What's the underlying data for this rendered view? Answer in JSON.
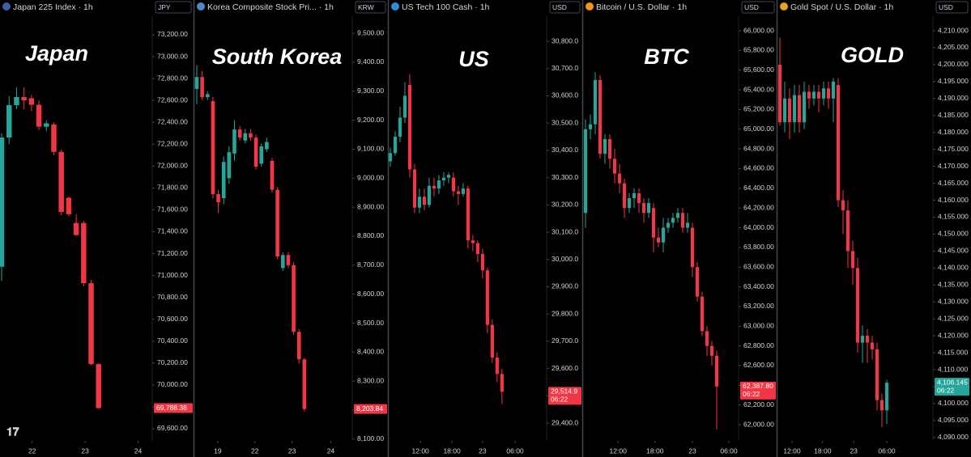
{
  "chart_data": [
    {
      "type": "candlestick",
      "title": "Japan 225 Index · 1h",
      "currency": "JPY",
      "label": "Japan",
      "up_color": "#26a69a",
      "down_color": "#f23645",
      "x": [
        0,
        1,
        2,
        3,
        4,
        5,
        6,
        7,
        8,
        9,
        10,
        11,
        12,
        13
      ],
      "open": [
        71080,
        72261,
        72557,
        72631,
        72620,
        72560,
        72360,
        72380,
        72130,
        71710,
        71480,
        71480,
        70930,
        70190
      ],
      "high": [
        72300,
        72640,
        72720,
        72720,
        72650,
        72600,
        72420,
        72400,
        72150,
        71720,
        71560,
        71500,
        70960,
        70200
      ],
      "low": [
        70950,
        72200,
        72520,
        72520,
        72500,
        72330,
        72320,
        72100,
        71550,
        71540,
        71360,
        70900,
        70180,
        69780
      ],
      "close": [
        72261,
        72557,
        72631,
        72600,
        72560,
        72360,
        72390,
        72130,
        71580,
        71560,
        71370,
        70930,
        70190,
        69788.38
      ],
      "xlim": [
        -0.22,
        20.2
      ],
      "ylim": [
        69489,
        73370
      ],
      "xticks": [
        {
          "value": 4.1,
          "label": "22"
        },
        {
          "value": 11.2,
          "label": "23"
        },
        {
          "value": 18.3,
          "label": "24"
        }
      ],
      "yticks": [
        {
          "value": 69600,
          "label": "69,600.00"
        },
        {
          "value": 69800,
          "label": "69,800.00"
        },
        {
          "value": 70000,
          "label": "70,000.00"
        },
        {
          "value": 70200,
          "label": "70,200.00"
        },
        {
          "value": 70400,
          "label": "70,400.00"
        },
        {
          "value": 70600,
          "label": "70,600.00"
        },
        {
          "value": 70800,
          "label": "70,800.00"
        },
        {
          "value": 71000,
          "label": "71,000.00"
        },
        {
          "value": 71200,
          "label": "71,200.00"
        },
        {
          "value": 71400,
          "label": "71,400.00"
        },
        {
          "value": 71600,
          "label": "71,600.00"
        },
        {
          "value": 71800,
          "label": "71,800.00"
        },
        {
          "value": 72000,
          "label": "72,000.00"
        },
        {
          "value": 72200,
          "label": "72,200.00"
        },
        {
          "value": 72400,
          "label": "72,400.00"
        },
        {
          "value": 72600,
          "label": "72,600.00"
        },
        {
          "value": 72800,
          "label": "72,800.00"
        },
        {
          "value": 73000,
          "label": "73,000.00"
        },
        {
          "value": 73200,
          "label": "73,200.00"
        }
      ],
      "last_price": {
        "value": 69788.38,
        "label": "69,788.38"
      }
    },
    {
      "type": "candlestick",
      "title": "Korea Composite Stock Pri... · 1h",
      "currency": "KRW",
      "label": "South Korea",
      "up_color": "#26a69a",
      "down_color": "#f23645",
      "x": [
        0,
        1,
        2,
        3,
        4,
        5,
        6,
        7,
        8,
        9,
        10,
        11,
        12,
        13,
        14,
        15,
        16,
        17,
        18,
        19,
        20
      ],
      "open": [
        9308,
        9349,
        9280,
        9266,
        8945,
        8931,
        9000,
        9085,
        9168,
        9130,
        9155,
        9140,
        9050,
        9100,
        9060,
        8960,
        8690,
        8735,
        8700,
        8470,
        8375
      ],
      "high": [
        9390,
        9370,
        9300,
        9280,
        8960,
        9075,
        9110,
        9200,
        9180,
        9170,
        9170,
        9150,
        9120,
        9140,
        9070,
        8970,
        8745,
        8745,
        8710,
        8480,
        8380
      ],
      "low": [
        9255,
        9270,
        9270,
        8930,
        8880,
        8910,
        8980,
        9060,
        9130,
        9120,
        9130,
        9030,
        9040,
        9090,
        8950,
        8720,
        8680,
        8690,
        8460,
        8360,
        8195
      ],
      "close": [
        9349,
        9280,
        9290,
        8945,
        8917,
        9056,
        9090,
        9168,
        9140,
        9155,
        9140,
        9040,
        9110,
        9125,
        8960,
        8730,
        8735,
        8700,
        8470,
        8375,
        8203.84
      ],
      "xlim": [
        -0.45,
        28.9
      ],
      "ylim": [
        8094,
        9559
      ],
      "xticks": [
        {
          "value": 3.9,
          "label": "19"
        },
        {
          "value": 10.8,
          "label": "22"
        },
        {
          "value": 17.7,
          "label": "23"
        },
        {
          "value": 24.9,
          "label": "24"
        }
      ],
      "yticks": [
        {
          "value": 8100,
          "label": "8,100.00"
        },
        {
          "value": 8200,
          "label": "8,200.00"
        },
        {
          "value": 8300,
          "label": "8,300.00"
        },
        {
          "value": 8400,
          "label": "8,400.00"
        },
        {
          "value": 8500,
          "label": "8,500.00"
        },
        {
          "value": 8600,
          "label": "8,600.00"
        },
        {
          "value": 8700,
          "label": "8,700.00"
        },
        {
          "value": 8800,
          "label": "8,800.00"
        },
        {
          "value": 8900,
          "label": "8,900.00"
        },
        {
          "value": 9000,
          "label": "9,000.00"
        },
        {
          "value": 9100,
          "label": "9,100.00"
        },
        {
          "value": 9200,
          "label": "9,200.00"
        },
        {
          "value": 9300,
          "label": "9,300.00"
        },
        {
          "value": 9400,
          "label": "9,400.00"
        },
        {
          "value": 9500,
          "label": "9,500.00"
        }
      ],
      "last_price": {
        "value": 8203.84,
        "label": "8,203.84"
      }
    },
    {
      "type": "candlestick",
      "title": "US Tech 100 Cash · 1h",
      "currency": "USD",
      "label": "US",
      "up_color": "#26a69a",
      "down_color": "#f23645",
      "x": [
        0,
        1,
        2,
        3,
        4,
        5,
        6,
        7,
        8,
        9,
        10,
        11,
        12,
        13,
        14,
        15,
        16,
        17,
        18,
        19,
        20,
        21,
        22,
        23
      ],
      "open": [
        30360,
        30390,
        30450,
        30520,
        30640,
        30330,
        30190,
        30230,
        30200,
        30270,
        30260,
        30290,
        30300,
        30300,
        30250,
        30240,
        30260,
        30070,
        30060,
        30020,
        29960,
        29760,
        29640,
        29580
      ],
      "high": [
        30410,
        30470,
        30560,
        30650,
        30680,
        30350,
        30260,
        30260,
        30300,
        30300,
        30310,
        30320,
        30320,
        30320,
        30270,
        30280,
        30270,
        30090,
        30070,
        30040,
        29970,
        29780,
        29660,
        29600
      ],
      "low": [
        30340,
        30380,
        30430,
        30500,
        30300,
        30170,
        30170,
        30180,
        30190,
        30230,
        30240,
        30270,
        30280,
        30230,
        30200,
        30230,
        30040,
        30030,
        29990,
        29930,
        29730,
        29620,
        29550,
        29470
      ],
      "close": [
        30390,
        30450,
        30520,
        30600,
        30330,
        30190,
        30230,
        30200,
        30270,
        30260,
        30290,
        30300,
        30310,
        30250,
        30240,
        30260,
        30070,
        30060,
        30020,
        29960,
        29760,
        29640,
        29580,
        29514.9
      ],
      "xlim": [
        -0.33,
        32.2
      ],
      "ylim": [
        29335,
        30892
      ],
      "xticks": [
        {
          "value": 6.2,
          "label": "12:00"
        },
        {
          "value": 12.7,
          "label": "18:00"
        },
        {
          "value": 19,
          "label": "23"
        },
        {
          "value": 25.7,
          "label": "06:00"
        }
      ],
      "yticks": [
        {
          "value": 29400,
          "label": "29,400.0"
        },
        {
          "value": 29500,
          "label": "29,500.0"
        },
        {
          "value": 29600,
          "label": "29,600.0"
        },
        {
          "value": 29700,
          "label": "29,700.0"
        },
        {
          "value": 29800,
          "label": "29,800.0"
        },
        {
          "value": 29900,
          "label": "29,900.0"
        },
        {
          "value": 30000,
          "label": "30,000.0"
        },
        {
          "value": 30100,
          "label": "30,100.0"
        },
        {
          "value": 30200,
          "label": "30,200.0"
        },
        {
          "value": 30300,
          "label": "30,300.0"
        },
        {
          "value": 30400,
          "label": "30,400.0"
        },
        {
          "value": 30500,
          "label": "30,500.0"
        },
        {
          "value": 30600,
          "label": "30,600.0"
        },
        {
          "value": 30700,
          "label": "30,700.0"
        },
        {
          "value": 30800,
          "label": "30,800.0"
        }
      ],
      "last_price": {
        "value": 29514.9,
        "label": "29,514.9"
      },
      "countdown": "06:22"
    },
    {
      "type": "candlestick",
      "title": "Bitcoin / U.S. Dollar · 1h",
      "currency": "USD",
      "label": "BTC",
      "up_color": "#26a69a",
      "down_color": "#f23645",
      "x": [
        0,
        1,
        2,
        3,
        4,
        5,
        6,
        7,
        8,
        9,
        10,
        11,
        12,
        13,
        14,
        15,
        16,
        17,
        18,
        19,
        20,
        21,
        22,
        23,
        24,
        25,
        26,
        27
      ],
      "open": [
        64150,
        65000,
        65050,
        65500,
        64750,
        64900,
        64700,
        64550,
        64450,
        64200,
        64300,
        64350,
        64250,
        64150,
        64200,
        63900,
        63850,
        64000,
        64050,
        64100,
        64150,
        64000,
        64000,
        63600,
        63300,
        62950,
        62800,
        62700
      ],
      "high": [
        65100,
        65150,
        65580,
        65550,
        64950,
        64950,
        64800,
        64650,
        64500,
        64350,
        64400,
        64400,
        64300,
        64300,
        64250,
        64000,
        64100,
        64100,
        64150,
        64200,
        64200,
        64150,
        64050,
        63650,
        63350,
        63000,
        62850,
        62750
      ],
      "low": [
        64000,
        64900,
        64950,
        64700,
        64650,
        64600,
        64450,
        64350,
        64100,
        64150,
        64200,
        64150,
        64050,
        64100,
        63750,
        63800,
        63750,
        63950,
        64000,
        64050,
        63950,
        63950,
        63500,
        63250,
        62900,
        62700,
        62600,
        61950
      ],
      "close": [
        65000,
        65050,
        65500,
        64750,
        64900,
        64700,
        64550,
        64450,
        64200,
        64300,
        64350,
        64250,
        64150,
        64250,
        63900,
        63850,
        64000,
        64050,
        64100,
        64150,
        64000,
        64050,
        63600,
        63300,
        62950,
        62800,
        62700,
        62387.8
      ],
      "xlim": [
        -0.5,
        31.5
      ],
      "ylim": [
        61836,
        66148
      ],
      "xticks": [
        {
          "value": 6.7,
          "label": "12:00"
        },
        {
          "value": 14.3,
          "label": "18:00"
        },
        {
          "value": 22,
          "label": "23"
        },
        {
          "value": 29.5,
          "label": "06:00"
        }
      ],
      "yticks": [
        {
          "value": 62000,
          "label": "62,000.00"
        },
        {
          "value": 62200,
          "label": "62,200.00"
        },
        {
          "value": 62400,
          "label": "62,400.00"
        },
        {
          "value": 62600,
          "label": "62,600.00"
        },
        {
          "value": 62800,
          "label": "62,800.00"
        },
        {
          "value": 63000,
          "label": "63,000.00"
        },
        {
          "value": 63200,
          "label": "63,200.00"
        },
        {
          "value": 63400,
          "label": "63,400.00"
        },
        {
          "value": 63600,
          "label": "63,600.00"
        },
        {
          "value": 63800,
          "label": "63,800.00"
        },
        {
          "value": 64000,
          "label": "64,000.00"
        },
        {
          "value": 64200,
          "label": "64,200.00"
        },
        {
          "value": 64400,
          "label": "64,400.00"
        },
        {
          "value": 64600,
          "label": "64,600.00"
        },
        {
          "value": 64800,
          "label": "64,800.00"
        },
        {
          "value": 65000,
          "label": "65,000.00"
        },
        {
          "value": 65200,
          "label": "65,200.00"
        },
        {
          "value": 65400,
          "label": "65,400.00"
        },
        {
          "value": 65600,
          "label": "65,600.00"
        },
        {
          "value": 65800,
          "label": "65,800.00"
        },
        {
          "value": 66000,
          "label": "66,000.00"
        }
      ],
      "last_price": {
        "value": 62387.8,
        "label": "62,387.80"
      },
      "countdown": "06:22"
    },
    {
      "type": "candlestick",
      "title": "Gold Spot / U.S. Dollar · 1h",
      "currency": "USD",
      "label": "GOLD",
      "up_color": "#26a69a",
      "down_color": "#f23645",
      "x": [
        0,
        1,
        2,
        3,
        4,
        5,
        6,
        7,
        8,
        9,
        10,
        11,
        12,
        13,
        14,
        15,
        16,
        17,
        18,
        19,
        20,
        21,
        22
      ],
      "open": [
        4200,
        4183,
        4190,
        4183,
        4191,
        4183,
        4192,
        4190,
        4192,
        4190,
        4193,
        4190,
        4194,
        4160,
        4157,
        4145,
        4140,
        4118,
        4120,
        4118,
        4116,
        4101,
        4098
      ],
      "high": [
        4208,
        4195,
        4193,
        4194,
        4194,
        4195,
        4194,
        4194,
        4194,
        4195,
        4195,
        4196,
        4196,
        4163,
        4160,
        4148,
        4143,
        4123,
        4122,
        4120,
        4118,
        4103,
        4107
      ],
      "low": [
        4182,
        4180,
        4178,
        4180,
        4180,
        4181,
        4187,
        4188,
        4186,
        4188,
        4187,
        4183,
        4158,
        4150,
        4140,
        4135,
        4115,
        4112,
        4112,
        4113,
        4098,
        4093,
        4094
      ],
      "close": [
        4183,
        4190,
        4183,
        4191,
        4183,
        4192,
        4190,
        4192,
        4190,
        4193,
        4190,
        4195,
        4160,
        4157,
        4145,
        4140,
        4118,
        4120,
        4118,
        4116,
        4101,
        4098,
        4106.145
      ],
      "xlim": [
        -0.5,
        31.5
      ],
      "ylim": [
        4089,
        4214.3
      ],
      "xticks": [
        {
          "value": 2.5,
          "label": "12:00"
        },
        {
          "value": 8.8,
          "label": "18:00"
        },
        {
          "value": 15.2,
          "label": "23"
        },
        {
          "value": 22,
          "label": "06:00"
        }
      ],
      "yticks": [
        {
          "value": 4090,
          "label": "4,090.000"
        },
        {
          "value": 4095,
          "label": "4,095.000"
        },
        {
          "value": 4100,
          "label": "4,100.000"
        },
        {
          "value": 4105,
          "label": "4,105.000"
        },
        {
          "value": 4110,
          "label": "4,110.000"
        },
        {
          "value": 4115,
          "label": "4,115.000"
        },
        {
          "value": 4120,
          "label": "4,120.000"
        },
        {
          "value": 4125,
          "label": "4,125.000"
        },
        {
          "value": 4130,
          "label": "4,130.000"
        },
        {
          "value": 4135,
          "label": "4,135.000"
        },
        {
          "value": 4140,
          "label": "4,140.000"
        },
        {
          "value": 4145,
          "label": "4,145.000"
        },
        {
          "value": 4150,
          "label": "4,150.000"
        },
        {
          "value": 4155,
          "label": "4,155.000"
        },
        {
          "value": 4160,
          "label": "4,160.000"
        },
        {
          "value": 4165,
          "label": "4,165.000"
        },
        {
          "value": 4170,
          "label": "4,170.000"
        },
        {
          "value": 4175,
          "label": "4,175.000"
        },
        {
          "value": 4180,
          "label": "4,180.000"
        },
        {
          "value": 4185,
          "label": "4,185.000"
        },
        {
          "value": 4190,
          "label": "4,190.000"
        },
        {
          "value": 4195,
          "label": "4,195.000"
        },
        {
          "value": 4200,
          "label": "4,200.000"
        },
        {
          "value": 4205,
          "label": "4,205.000"
        },
        {
          "value": 4210,
          "label": "4,210.000"
        }
      ],
      "last_price": {
        "value": 4106.145,
        "label": "4,106.145"
      },
      "countdown": "06:22"
    }
  ]
}
